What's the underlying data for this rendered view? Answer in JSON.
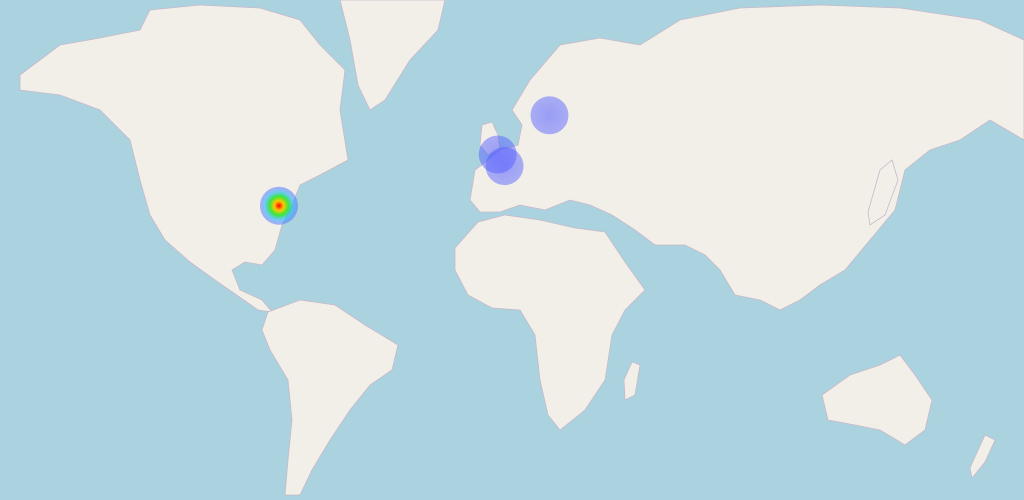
{
  "points": [
    {
      "lat": 38.9,
      "lon": -77.0,
      "weight": 1
    },
    {
      "lat": 51.5,
      "lon": -0.1,
      "weight": 0.3
    },
    {
      "lat": 48.9,
      "lon": 2.3,
      "weight": 0.3
    },
    {
      "lat": 59.3,
      "lon": 18.1,
      "weight": 0.3
    }
  ]
}
